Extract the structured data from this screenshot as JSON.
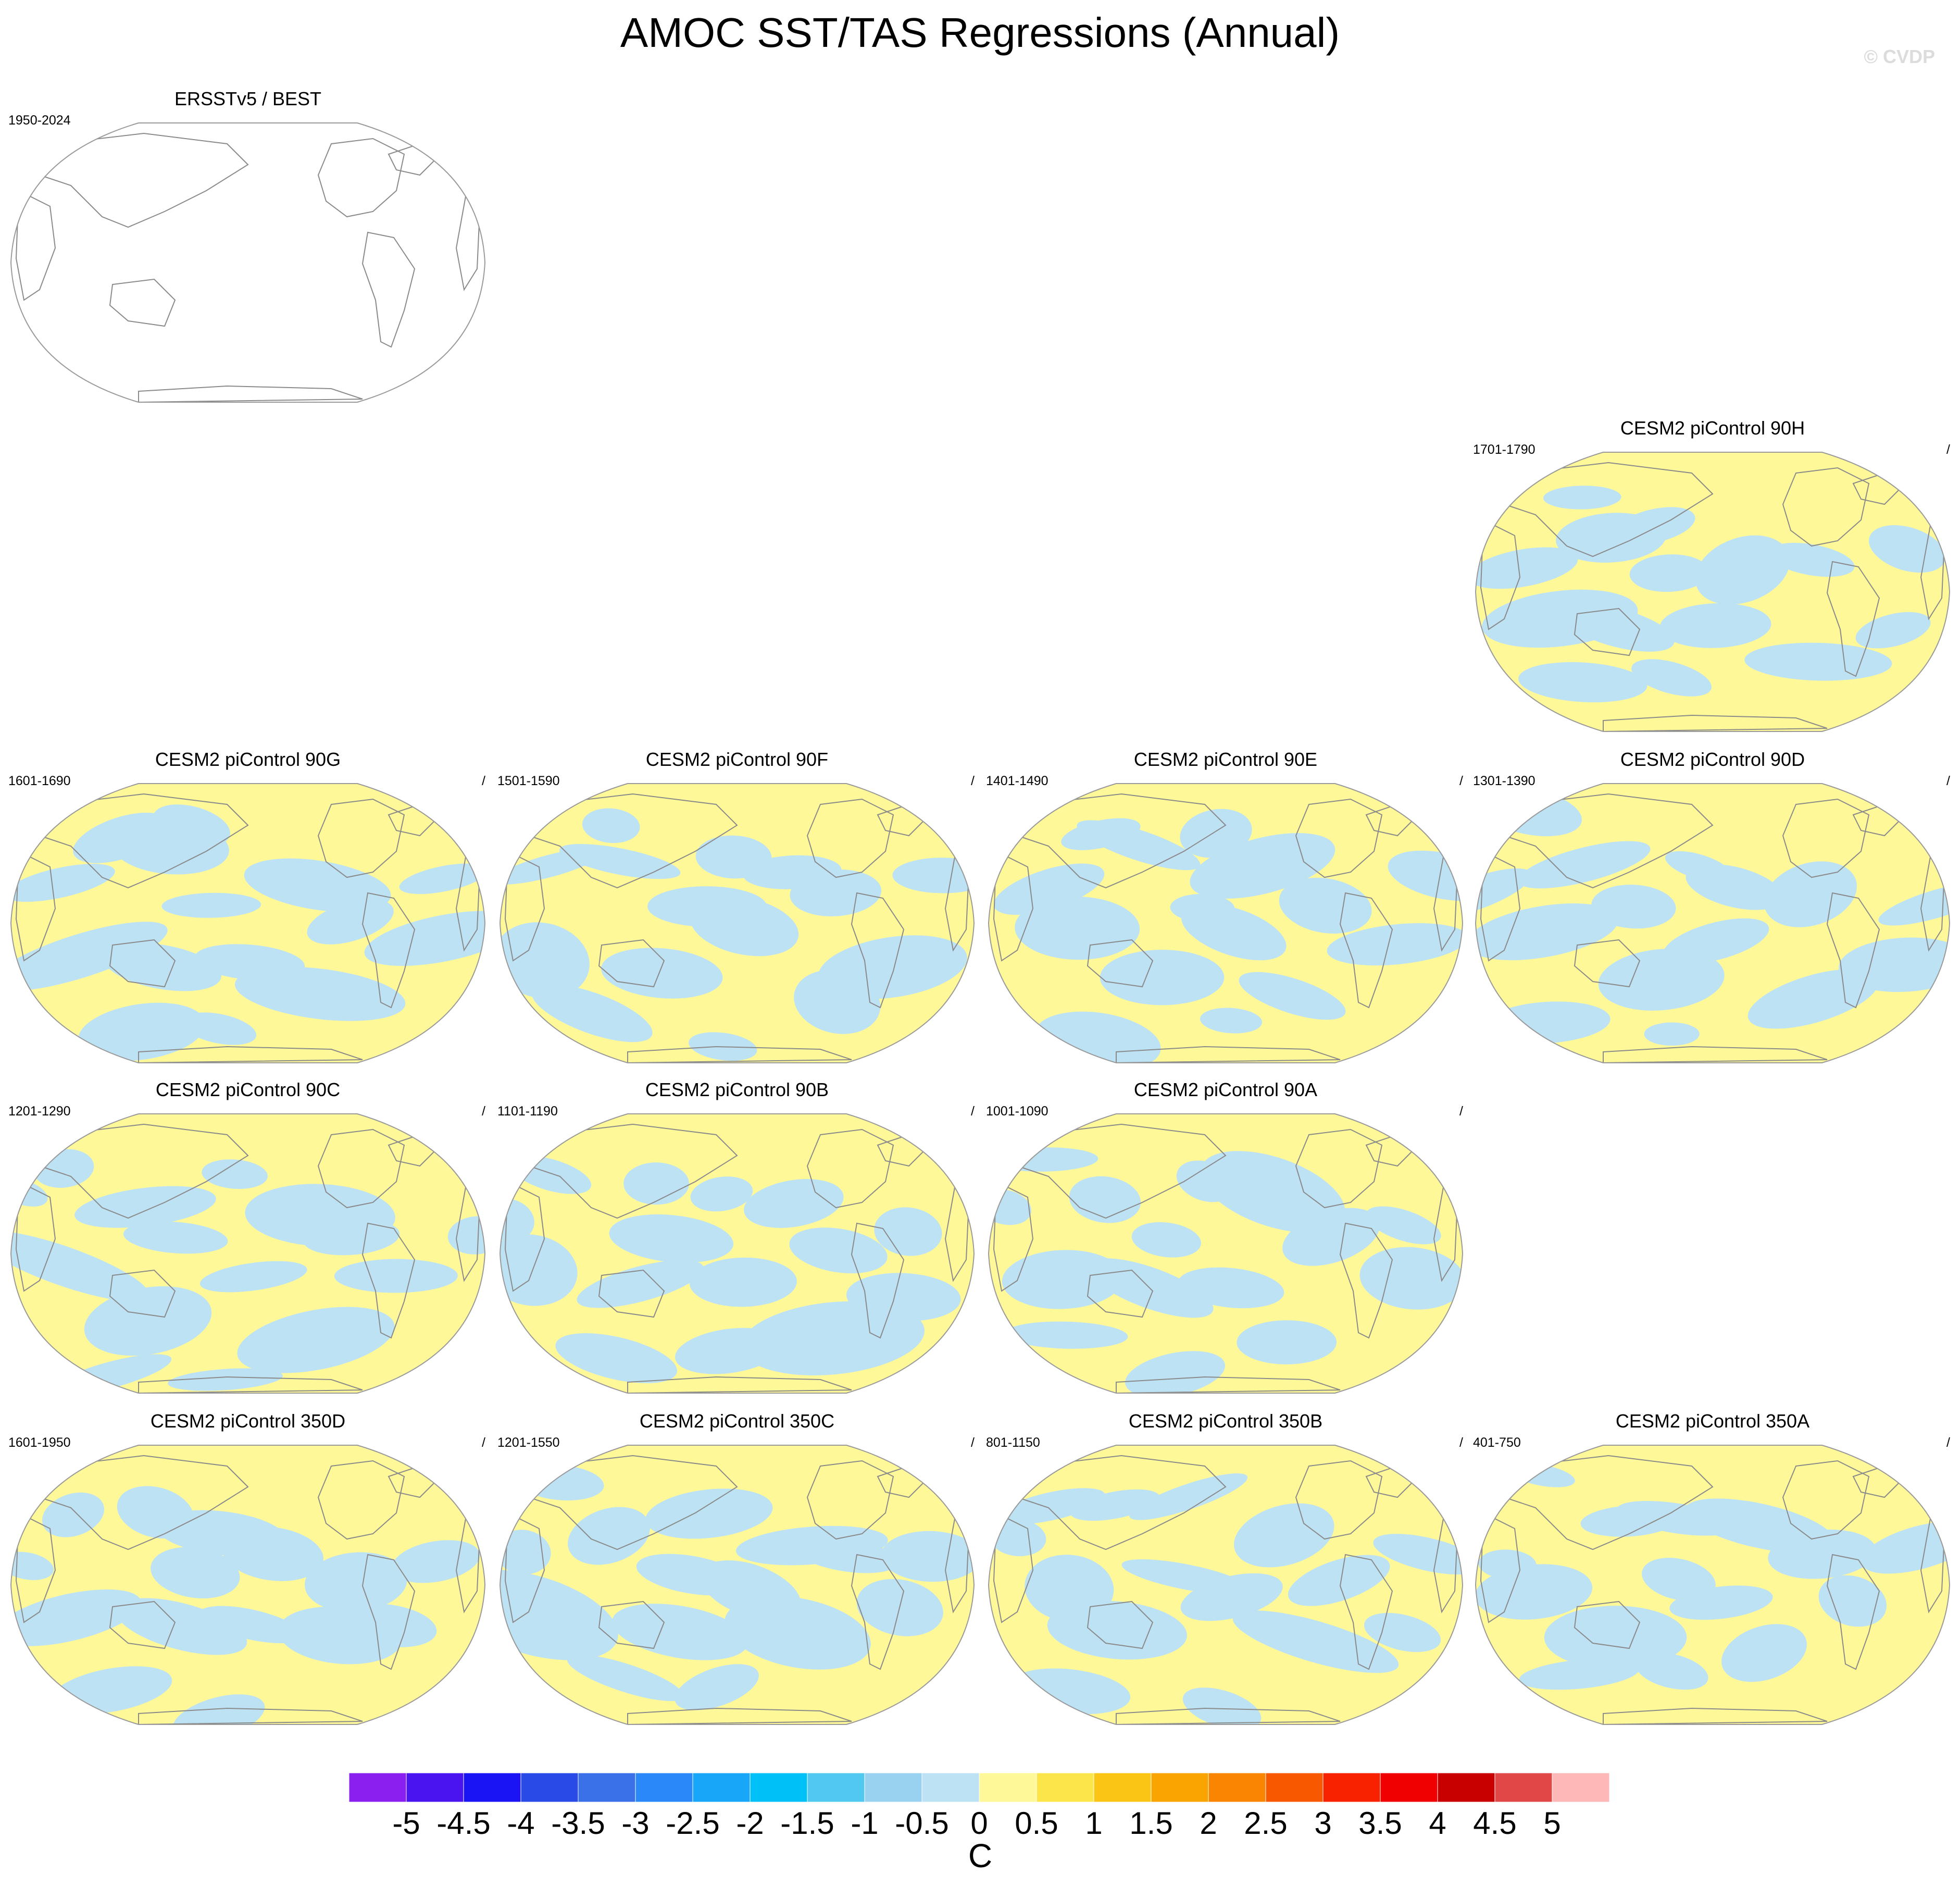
{
  "title": "AMOC SST/TAS Regressions (Annual)",
  "watermark": "© CVDP",
  "colors": {
    "land_outline": "#8a8a8a",
    "frame": "#9a9a9a",
    "neg": "#bde2f4",
    "pos": "#fff899",
    "pos_strong": "#fce54a"
  },
  "panels": [
    {
      "title": "ERSSTv5 / BEST",
      "years": "1950-2024",
      "slash": "",
      "fill": false
    },
    {
      "title": "CESM2 piControl 90H",
      "years": "1701-1790",
      "slash": "/",
      "fill": true
    },
    {
      "title": "CESM2 piControl 90G",
      "years": "1601-1690",
      "slash": "/",
      "fill": true
    },
    {
      "title": "CESM2 piControl 90F",
      "years": "1501-1590",
      "slash": "/",
      "fill": true
    },
    {
      "title": "CESM2 piControl 90E",
      "years": "1401-1490",
      "slash": "/",
      "fill": true
    },
    {
      "title": "CESM2 piControl 90D",
      "years": "1301-1390",
      "slash": "/",
      "fill": true
    },
    {
      "title": "CESM2 piControl 90C",
      "years": "1201-1290",
      "slash": "/",
      "fill": true
    },
    {
      "title": "CESM2 piControl 90B",
      "years": "1101-1190",
      "slash": "/",
      "fill": true
    },
    {
      "title": "CESM2 piControl 90A",
      "years": "1001-1090",
      "slash": "/",
      "fill": true
    },
    {
      "title": "CESM2 piControl 350D",
      "years": "1601-1950",
      "slash": "/",
      "fill": true
    },
    {
      "title": "CESM2 piControl 350C",
      "years": "1201-1550",
      "slash": "/",
      "fill": true
    },
    {
      "title": "CESM2 piControl 350B",
      "years": "801-1150",
      "slash": "/",
      "fill": true
    },
    {
      "title": "CESM2 piControl 350A",
      "years": "401-750",
      "slash": "/",
      "fill": true
    }
  ],
  "colorbar": {
    "units": "C",
    "labels": [
      "-5",
      "-4.5",
      "-4",
      "-3.5",
      "-3",
      "-2.5",
      "-2",
      "-1.5",
      "-1",
      "-0.5",
      "0",
      "0.5",
      "1",
      "1.5",
      "2",
      "2.5",
      "3",
      "3.5",
      "4",
      "4.5",
      "5"
    ],
    "colors": [
      "#8a1ff0",
      "#4a14f0",
      "#1a14f5",
      "#2a4ae8",
      "#3a70e8",
      "#2a88f8",
      "#18a6f8",
      "#00c0f8",
      "#50c8f0",
      "#98d2f0",
      "#bde2f4",
      "#fff899",
      "#fce54a",
      "#fbc516",
      "#f9a400",
      "#f98500",
      "#f85800",
      "#f82200",
      "#f00000",
      "#c80000",
      "#e04848",
      "#ffb8b8"
    ]
  }
}
